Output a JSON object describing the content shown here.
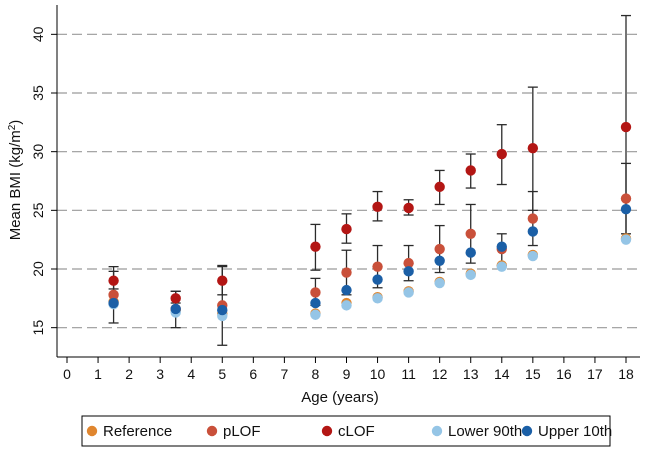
{
  "chart_data": {
    "type": "scatter",
    "title": "",
    "xlabel": "Age (years)",
    "ylabel_main": "Mean BMI (kg/m",
    "ylabel_sup": "2",
    "ylabel_close": ")",
    "xlim": [
      0,
      18
    ],
    "ylim": [
      12.5,
      42.5
    ],
    "x_ticks": [
      0,
      1,
      2,
      3,
      4,
      5,
      6,
      7,
      8,
      9,
      10,
      11,
      12,
      13,
      14,
      15,
      16,
      17,
      18
    ],
    "y_ticks": [
      15,
      20,
      25,
      30,
      35,
      40
    ],
    "grid": "horizontal dashed",
    "legend_position": "bottom",
    "series": [
      {
        "name": "Reference",
        "color": "#e0862f",
        "x": [
          1.5,
          3.5,
          5,
          8,
          9,
          10,
          11,
          12,
          13,
          14,
          15,
          18
        ],
        "y": [
          17.2,
          16.5,
          16.2,
          16.2,
          17.1,
          17.6,
          18.1,
          18.9,
          19.6,
          20.3,
          21.2,
          22.6
        ]
      },
      {
        "name": "pLOF",
        "color": "#c9503a",
        "x": [
          1.5,
          3.5,
          5,
          8,
          9,
          10,
          11,
          12,
          13,
          14,
          15,
          18
        ],
        "y": [
          17.8,
          16.6,
          16.9,
          18.0,
          19.7,
          20.2,
          20.5,
          21.7,
          23.0,
          21.7,
          24.3,
          26.0
        ],
        "err": [
          [
            15.4,
            20.2
          ],
          [
            15.0,
            18.1
          ],
          [
            13.5,
            20.3
          ],
          [
            16.9,
            19.2
          ],
          [
            17.8,
            21.6
          ],
          [
            18.4,
            22.0
          ],
          [
            19.0,
            22.0
          ],
          [
            19.7,
            23.7
          ],
          [
            20.5,
            25.5
          ],
          [
            20.3,
            23.0
          ],
          [
            22.0,
            26.6
          ],
          [
            23.0,
            29.0
          ]
        ]
      },
      {
        "name": "cLOF",
        "color": "#b31614",
        "x": [
          1.5,
          3.5,
          5,
          8,
          9,
          10,
          11,
          12,
          13,
          14,
          15,
          18
        ],
        "y": [
          19.0,
          17.5,
          19.0,
          21.9,
          23.4,
          25.3,
          25.2,
          27.0,
          28.4,
          29.8,
          30.3,
          32.1
        ],
        "err": [
          [
            18.3,
            19.8
          ],
          [
            17.1,
            18.1
          ],
          [
            17.8,
            20.2
          ],
          [
            19.9,
            23.8
          ],
          [
            22.2,
            24.7
          ],
          [
            24.1,
            26.6
          ],
          [
            24.6,
            25.9
          ],
          [
            25.5,
            28.4
          ],
          [
            26.9,
            29.8
          ],
          [
            27.2,
            32.3
          ],
          [
            25.0,
            35.5
          ],
          [
            22.6,
            41.6
          ]
        ]
      },
      {
        "name": "Lower 90th",
        "color": "#95c5e6",
        "x": [
          1.5,
          3.5,
          5,
          8,
          9,
          10,
          11,
          12,
          13,
          14,
          15,
          18
        ],
        "y": [
          17.0,
          16.3,
          16.0,
          16.1,
          16.9,
          17.5,
          18.0,
          18.8,
          19.5,
          20.2,
          21.1,
          22.5
        ]
      },
      {
        "name": "Upper 10th",
        "color": "#1b5fa6",
        "x": [
          1.5,
          3.5,
          5,
          8,
          9,
          10,
          11,
          12,
          13,
          14,
          15,
          18
        ],
        "y": [
          17.1,
          16.6,
          16.5,
          17.1,
          18.2,
          19.1,
          19.8,
          20.7,
          21.4,
          21.9,
          23.2,
          25.1
        ]
      }
    ]
  }
}
